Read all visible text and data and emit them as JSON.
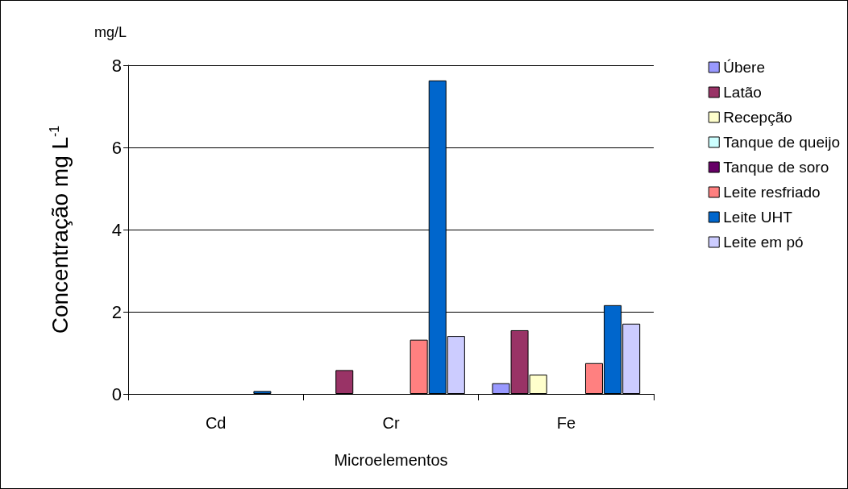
{
  "chart_data": {
    "type": "bar",
    "xlabel": "Microelementos",
    "ylabel": "Concentração mg L$^{-1}$",
    "annotations": [
      "mg/L"
    ],
    "categories": [
      "Cd",
      "Cr",
      "Fe"
    ],
    "series": [
      {
        "name": "Úbere",
        "color": "#9999ff",
        "values": [
          null,
          null,
          0.26
        ]
      },
      {
        "name": "Latão",
        "color": "#993366",
        "values": [
          null,
          0.58,
          1.55
        ]
      },
      {
        "name": "Recepção",
        "color": "#ffffcc",
        "values": [
          null,
          null,
          0.47
        ]
      },
      {
        "name": "Tanque de queijo",
        "color": "#ccffff",
        "values": [
          null,
          null,
          null
        ]
      },
      {
        "name": "Tanque de soro",
        "color": "#660066",
        "values": [
          null,
          null,
          null
        ]
      },
      {
        "name": "Leite resfriado",
        "color": "#ff8080",
        "values": [
          null,
          1.32,
          0.75
        ]
      },
      {
        "name": "Leite UHT",
        "color": "#0066cc",
        "values": [
          0.07,
          7.63,
          2.16
        ]
      },
      {
        "name": "Leite em pó",
        "color": "#ccccff",
        "values": [
          null,
          1.41,
          1.71
        ]
      }
    ],
    "ylim": [
      0,
      8
    ],
    "yticks": [
      0,
      2,
      4,
      6,
      8
    ],
    "grid": "y",
    "legend": "right"
  }
}
